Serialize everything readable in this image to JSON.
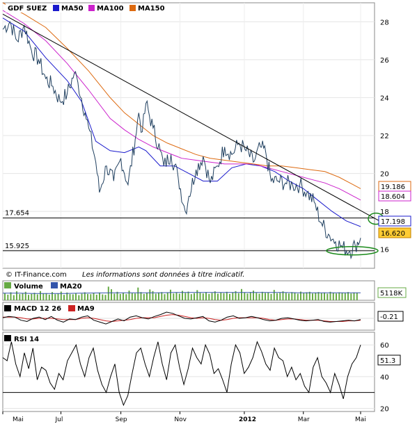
{
  "colors": {
    "price": "#1f3f5f",
    "ma50": "#1a1acc",
    "ma100": "#cc22cc",
    "ma150": "#dd6a10",
    "trend": "#000000",
    "ellipse": "#1a8a1a",
    "volume": "#66aa44",
    "volMa": "#3355aa",
    "macd": "#000000",
    "macdSig": "#cc2222",
    "rsi": "#000000"
  },
  "legend": {
    "title": "GDF SUEZ",
    "ma50": "MA50",
    "ma100": "MA100",
    "ma150": "MA150"
  },
  "source_note": "© IT-Finance.com",
  "disclaimer": "Les informations sont données à titre indicatif.",
  "volume_panel": {
    "label": "Volume",
    "ma": "MA20",
    "value_tag": "5118K"
  },
  "macd_panel": {
    "label": "MACD 12 26",
    "signal": "MA9",
    "value_tag": "-0.21"
  },
  "rsi_panel": {
    "label": "RSI 14",
    "value_tag": "51.3"
  },
  "chart_data": [
    {
      "type": "line",
      "title": "GDF SUEZ",
      "x_months": [
        "Mai",
        "Jul",
        "Sep",
        "Nov",
        "2012",
        "Mar",
        "Mai"
      ],
      "ylim": [
        15,
        29
      ],
      "yticks": [
        16,
        18,
        20,
        22,
        24,
        26,
        28
      ],
      "price_points": [
        [
          0,
          27.6
        ],
        [
          4,
          28.0
        ],
        [
          8,
          27.0
        ],
        [
          12,
          27.8
        ],
        [
          16,
          26.5
        ],
        [
          20,
          26.0
        ],
        [
          24,
          25.0
        ],
        [
          28,
          24.6
        ],
        [
          32,
          23.8
        ],
        [
          36,
          24.2
        ],
        [
          40,
          25.3
        ],
        [
          42,
          24.8
        ],
        [
          46,
          23.2
        ],
        [
          48,
          22.4
        ],
        [
          52,
          20.6
        ],
        [
          54,
          19.0
        ],
        [
          58,
          20.4
        ],
        [
          62,
          19.6
        ],
        [
          66,
          20.8
        ],
        [
          70,
          19.4
        ],
        [
          74,
          21.8
        ],
        [
          76,
          23.2
        ],
        [
          78,
          22.2
        ],
        [
          80,
          23.7
        ],
        [
          84,
          22.4
        ],
        [
          88,
          21.2
        ],
        [
          90,
          20.4
        ],
        [
          94,
          21.0
        ],
        [
          98,
          19.8
        ],
        [
          102,
          18.0
        ],
        [
          104,
          18.8
        ],
        [
          108,
          20.2
        ],
        [
          112,
          20.9
        ],
        [
          116,
          19.5
        ],
        [
          120,
          20.4
        ],
        [
          124,
          21.4
        ],
        [
          128,
          21.0
        ],
        [
          132,
          21.6
        ],
        [
          136,
          21.2
        ],
        [
          140,
          20.6
        ],
        [
          144,
          21.4
        ],
        [
          147,
          21.1
        ],
        [
          150,
          19.6
        ],
        [
          154,
          19.6
        ],
        [
          158,
          19.5
        ],
        [
          162,
          19.4
        ],
        [
          166,
          19.4
        ],
        [
          170,
          19.0
        ],
        [
          174,
          18.5
        ],
        [
          178,
          17.4
        ],
        [
          182,
          16.8
        ],
        [
          186,
          16.4
        ],
        [
          190,
          16.1
        ],
        [
          194,
          15.9
        ],
        [
          197,
          16.2
        ],
        [
          200,
          16.6
        ]
      ],
      "series": [
        {
          "name": "MA50",
          "points": [
            [
              0,
              28.2
            ],
            [
              12,
              27.5
            ],
            [
              24,
              26.1
            ],
            [
              36,
              24.9
            ],
            [
              44,
              23.8
            ],
            [
              52,
              21.7
            ],
            [
              60,
              21.2
            ],
            [
              68,
              21.1
            ],
            [
              76,
              21.4
            ],
            [
              80,
              21.2
            ],
            [
              88,
              20.4
            ],
            [
              96,
              20.4
            ],
            [
              104,
              20.0
            ],
            [
              112,
              19.6
            ],
            [
              120,
              19.6
            ],
            [
              128,
              20.3
            ],
            [
              136,
              20.5
            ],
            [
              144,
              20.4
            ],
            [
              152,
              20.1
            ],
            [
              160,
              19.6
            ],
            [
              168,
              19.2
            ],
            [
              176,
              18.6
            ],
            [
              184,
              18.0
            ],
            [
              192,
              17.5
            ],
            [
              200,
              17.2
            ]
          ]
        },
        {
          "name": "MA100",
          "points": [
            [
              0,
              28.6
            ],
            [
              12,
              27.9
            ],
            [
              24,
              27.0
            ],
            [
              36,
              25.8
            ],
            [
              48,
              24.4
            ],
            [
              60,
              22.9
            ],
            [
              68,
              22.3
            ],
            [
              76,
              21.8
            ],
            [
              84,
              21.4
            ],
            [
              92,
              21.1
            ],
            [
              100,
              20.8
            ],
            [
              108,
              20.7
            ],
            [
              116,
              20.6
            ],
            [
              124,
              20.5
            ],
            [
              132,
              20.5
            ],
            [
              140,
              20.5
            ],
            [
              148,
              20.3
            ],
            [
              156,
              20.1
            ],
            [
              164,
              19.9
            ],
            [
              172,
              19.7
            ],
            [
              180,
              19.5
            ],
            [
              188,
              19.2
            ],
            [
              194,
              18.9
            ],
            [
              200,
              18.6
            ]
          ]
        },
        {
          "name": "MA150",
          "points": [
            [
              0,
              29.0
            ],
            [
              12,
              28.4
            ],
            [
              24,
              27.7
            ],
            [
              36,
              26.6
            ],
            [
              48,
              25.4
            ],
            [
              60,
              24.0
            ],
            [
              68,
              23.2
            ],
            [
              76,
              22.6
            ],
            [
              84,
              22.0
            ],
            [
              92,
              21.6
            ],
            [
              100,
              21.3
            ],
            [
              108,
              21.0
            ],
            [
              116,
              20.8
            ],
            [
              124,
              20.7
            ],
            [
              132,
              20.6
            ],
            [
              140,
              20.5
            ],
            [
              148,
              20.4
            ],
            [
              156,
              20.4
            ],
            [
              164,
              20.3
            ],
            [
              172,
              20.2
            ],
            [
              180,
              20.1
            ],
            [
              188,
              19.8
            ],
            [
              194,
              19.5
            ],
            [
              200,
              19.2
            ]
          ]
        }
      ],
      "levels": [
        {
          "label": "17.654",
          "y": 17.654
        },
        {
          "label": "15.925",
          "y": 15.925
        }
      ],
      "value_tags": [
        {
          "label": "19.186"
        },
        {
          "label": "18.604"
        },
        {
          "label": "17.198"
        },
        {
          "label": "16.620"
        }
      ]
    },
    {
      "type": "bar",
      "title": "Volume",
      "values": [
        3.1,
        2.4,
        3.4,
        2.2,
        3.8,
        2.6,
        2.9,
        3.6,
        2.3,
        2.7,
        3.2,
        2.5,
        3.9,
        2.8,
        3.0,
        2.4,
        3.5,
        2.6,
        2.9,
        3.7,
        2.3,
        3.3,
        2.6,
        2.5,
        3.1,
        2.2,
        2.8,
        3.4,
        2.7,
        2.6,
        3.0,
        2.4,
        3.3,
        2.5,
        2.3,
        5.8,
        4.7,
        2.8,
        3.6,
        2.7,
        3.2,
        2.6,
        4.1,
        3.0,
        2.9,
        5.4,
        3.5,
        2.7,
        3.1,
        4.6,
        3.9,
        2.8,
        3.3,
        3.5,
        2.6,
        3.2,
        4.5,
        2.9,
        3.4,
        2.8,
        4.0,
        3.1,
        3.7,
        2.6,
        3.0,
        4.3,
        3.2,
        2.9,
        3.5,
        2.7,
        3.1,
        3.8,
        2.8,
        3.4,
        3.0,
        3.6,
        2.7,
        3.3,
        3.9,
        3.0,
        4.8,
        3.4,
        2.9,
        3.5,
        4.1,
        3.2,
        2.8,
        3.6,
        3.1,
        3.3,
        2.7,
        4.4,
        3.0,
        3.2,
        3.8,
        3.1,
        2.9,
        3.5,
        3.3,
        2.8,
        3.7,
        3.0,
        3.4,
        3.6,
        2.9,
        3.2,
        3.5,
        3.0,
        3.3,
        2.8,
        3.6,
        3.1,
        2.9,
        3.4,
        3.2,
        3.0,
        3.5,
        2.9,
        3.3,
        3.1
      ],
      "ma20": [
        3.0,
        3.0,
        2.9,
        2.9,
        2.9,
        3.0,
        3.1,
        3.2,
        3.2,
        3.2,
        3.2,
        3.3,
        3.3,
        3.3,
        3.3,
        3.3,
        3.3,
        3.3,
        3.3,
        3.2,
        3.2,
        3.2,
        3.2,
        3.2
      ]
    },
    {
      "type": "line",
      "title": "MACD 12 26",
      "macd": [
        0.1,
        0.3,
        0.2,
        -0.3,
        -0.5,
        0.0,
        0.2,
        -0.2,
        0.3,
        -0.3,
        -0.6,
        -0.1,
        -0.2,
        0.2,
        0.4,
        -0.3,
        -0.6,
        -0.9,
        -0.5,
        -0.1,
        -0.4,
        0.2,
        0.4,
        0.1,
        -0.1,
        0.3,
        0.6,
        1.0,
        0.8,
        0.4,
        0.0,
        -0.1,
        0.1,
        0.3,
        -0.4,
        -0.6,
        -0.3,
        0.2,
        0.4,
        0.0,
        0.1,
        0.3,
        0.1,
        -0.2,
        -0.4,
        -0.3,
        0.0,
        0.1,
        -0.1,
        -0.3,
        -0.4,
        -0.3,
        -0.2,
        -0.5,
        -0.6,
        -0.5,
        -0.4,
        -0.3,
        -0.4,
        -0.2
      ],
      "signal": [
        0.2,
        0.2,
        0.2,
        0.1,
        -0.1,
        -0.1,
        0.0,
        0.0,
        0.0,
        -0.1,
        -0.2,
        -0.2,
        -0.2,
        0.0,
        0.1,
        0.0,
        -0.2,
        -0.4,
        -0.5,
        -0.4,
        -0.3,
        -0.2,
        0.0,
        0.1,
        0.1,
        0.1,
        0.3,
        0.5,
        0.6,
        0.5,
        0.3,
        0.1,
        0.0,
        0.1,
        0.0,
        -0.2,
        -0.3,
        -0.2,
        0.0,
        0.1,
        0.1,
        0.1,
        0.1,
        0.0,
        -0.2,
        -0.3,
        -0.2,
        -0.1,
        -0.1,
        -0.2,
        -0.3,
        -0.3,
        -0.3,
        -0.4,
        -0.5,
        -0.5,
        -0.5,
        -0.4,
        -0.4,
        -0.3
      ]
    },
    {
      "type": "line",
      "title": "RSI 14",
      "ylim": [
        18,
        68
      ],
      "yticks": [
        20,
        40,
        60
      ],
      "threshold": 30,
      "values": [
        52,
        50,
        62,
        48,
        40,
        55,
        45,
        58,
        38,
        46,
        44,
        36,
        32,
        42,
        38,
        50,
        55,
        60,
        48,
        40,
        52,
        58,
        44,
        35,
        30,
        40,
        48,
        30,
        22,
        28,
        42,
        55,
        58,
        48,
        40,
        52,
        62,
        48,
        38,
        55,
        60,
        46,
        35,
        45,
        58,
        52,
        48,
        60,
        54,
        42,
        45,
        38,
        30,
        48,
        60,
        55,
        42,
        46,
        52,
        62,
        56,
        48,
        44,
        58,
        52,
        50,
        40,
        46,
        38,
        42,
        34,
        30,
        46,
        52,
        40,
        36,
        30,
        42,
        35,
        26,
        40,
        48,
        52,
        60
      ]
    }
  ]
}
